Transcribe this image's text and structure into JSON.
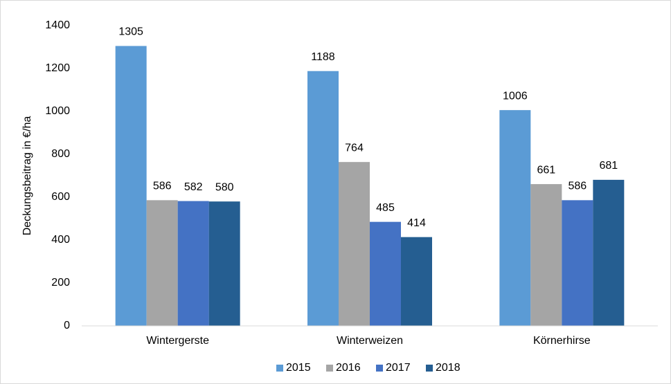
{
  "chart_data": {
    "type": "bar",
    "y_label": "Deckungsbeitrag in €/ha",
    "categories": [
      "Wintergerste",
      "Winterweizen",
      "Körnerhirse"
    ],
    "series": [
      {
        "name": "2015",
        "color": "#5b9bd5",
        "values": [
          1305,
          1188,
          1006
        ]
      },
      {
        "name": "2016",
        "color": "#a5a5a5",
        "values": [
          586,
          764,
          661
        ]
      },
      {
        "name": "2017",
        "color": "#4472c4",
        "values": [
          582,
          485,
          586
        ]
      },
      {
        "name": "2018",
        "color": "#255e91",
        "values": [
          580,
          414,
          681
        ]
      }
    ],
    "ylim": [
      0,
      1400
    ],
    "yticks": [
      0,
      200,
      400,
      600,
      800,
      1000,
      1200,
      1400
    ],
    "grid": false,
    "legend": "bottom"
  }
}
